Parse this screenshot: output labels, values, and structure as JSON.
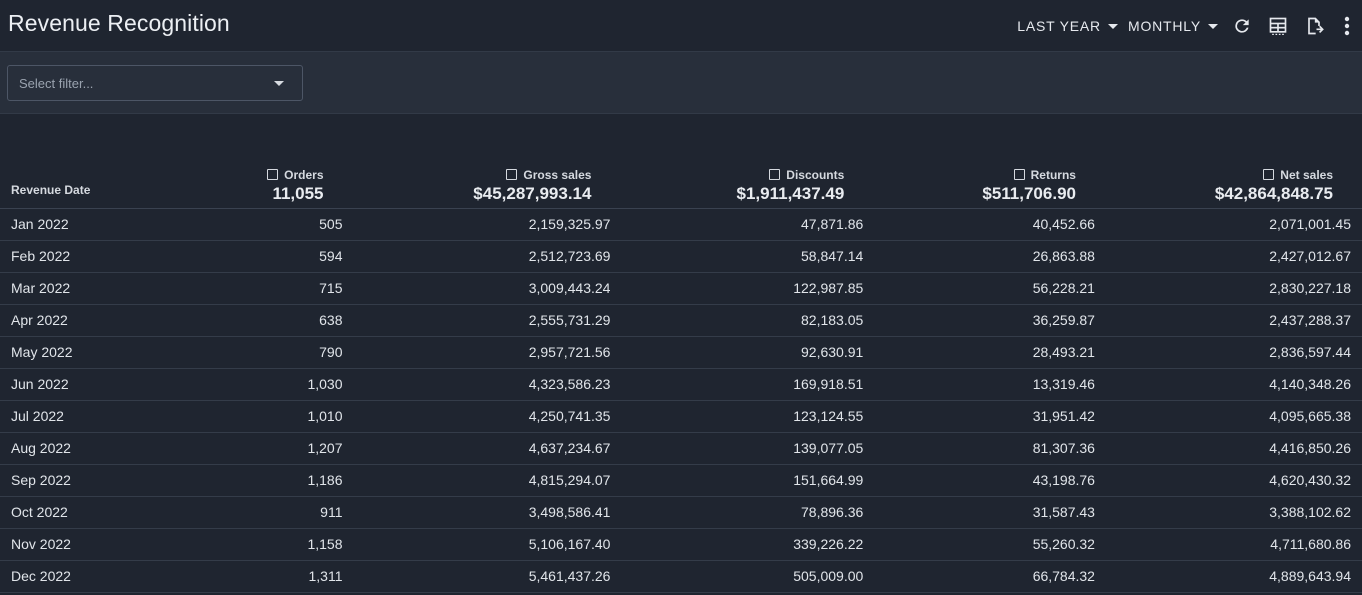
{
  "header": {
    "title": "Revenue Recognition",
    "period_label": "LAST YEAR",
    "granularity_label": "MONTHLY",
    "icons": [
      "refresh-icon",
      "table-settings-icon",
      "export-icon",
      "more-vert-icon"
    ]
  },
  "filter": {
    "placeholder": "Select filter..."
  },
  "table": {
    "columns": [
      {
        "label": "Revenue Date",
        "total": ""
      },
      {
        "label": "Orders",
        "total": "11,055"
      },
      {
        "label": "Gross sales",
        "total": "$45,287,993.14"
      },
      {
        "label": "Discounts",
        "total": "$1,911,437.49"
      },
      {
        "label": "Returns",
        "total": "$511,706.90"
      },
      {
        "label": "Net sales",
        "total": "$42,864,848.75"
      }
    ],
    "rows": [
      [
        "Jan 2022",
        "505",
        "2,159,325.97",
        "47,871.86",
        "40,452.66",
        "2,071,001.45"
      ],
      [
        "Feb 2022",
        "594",
        "2,512,723.69",
        "58,847.14",
        "26,863.88",
        "2,427,012.67"
      ],
      [
        "Mar 2022",
        "715",
        "3,009,443.24",
        "122,987.85",
        "56,228.21",
        "2,830,227.18"
      ],
      [
        "Apr 2022",
        "638",
        "2,555,731.29",
        "82,183.05",
        "36,259.87",
        "2,437,288.37"
      ],
      [
        "May 2022",
        "790",
        "2,957,721.56",
        "92,630.91",
        "28,493.21",
        "2,836,597.44"
      ],
      [
        "Jun 2022",
        "1,030",
        "4,323,586.23",
        "169,918.51",
        "13,319.46",
        "4,140,348.26"
      ],
      [
        "Jul 2022",
        "1,010",
        "4,250,741.35",
        "123,124.55",
        "31,951.42",
        "4,095,665.38"
      ],
      [
        "Aug 2022",
        "1,207",
        "4,637,234.67",
        "139,077.05",
        "81,307.36",
        "4,416,850.26"
      ],
      [
        "Sep 2022",
        "1,186",
        "4,815,294.07",
        "151,664.99",
        "43,198.76",
        "4,620,430.32"
      ],
      [
        "Oct 2022",
        "911",
        "3,498,586.41",
        "78,896.36",
        "31,587.43",
        "3,388,102.62"
      ],
      [
        "Nov 2022",
        "1,158",
        "5,106,167.40",
        "339,226.22",
        "55,260.32",
        "4,711,680.86"
      ],
      [
        "Dec 2022",
        "1,311",
        "5,461,437.26",
        "505,009.00",
        "66,784.32",
        "4,889,643.94"
      ]
    ]
  },
  "colors": {
    "background": "#1f2530",
    "filterbar": "#282f3b",
    "text": "#e6e9ee",
    "muted": "#9aa3af"
  }
}
